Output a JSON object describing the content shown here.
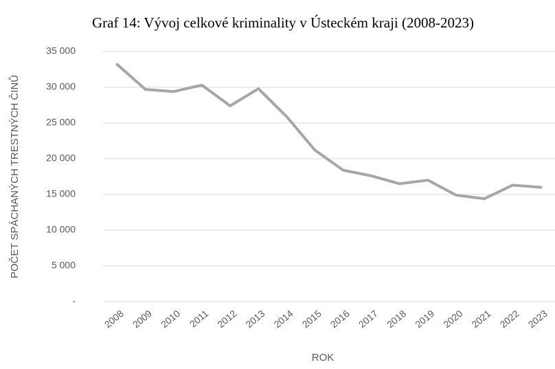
{
  "chart_data": {
    "type": "line",
    "title": "Graf 14: Vývoj celkové kriminality v Ústeckém kraji (2008-2023)",
    "x_label": "ROK",
    "y_label": "POČET SPÁCHANÝCH TRESTNÝCH ČINŮ",
    "categories": [
      "2008",
      "2009",
      "2010",
      "2011",
      "2012",
      "2013",
      "2014",
      "2015",
      "2016",
      "2017",
      "2018",
      "2019",
      "2020",
      "2021",
      "2022",
      "2023"
    ],
    "values": [
      33200,
      29700,
      29400,
      30300,
      27400,
      29800,
      25900,
      21200,
      18400,
      17600,
      16500,
      17000,
      14900,
      14400,
      16300,
      16000
    ],
    "color": "#a6a6a6",
    "ylim": [
      0,
      35000
    ],
    "yticks": [
      {
        "value": 0,
        "label": "-"
      },
      {
        "value": 5000,
        "label": "5 000"
      },
      {
        "value": 10000,
        "label": "10 000"
      },
      {
        "value": 15000,
        "label": "15 000"
      },
      {
        "value": 20000,
        "label": "20 000"
      },
      {
        "value": 25000,
        "label": "25 000"
      },
      {
        "value": 30000,
        "label": "30 000"
      },
      {
        "value": 35000,
        "label": "35 000"
      }
    ],
    "grid": true
  }
}
